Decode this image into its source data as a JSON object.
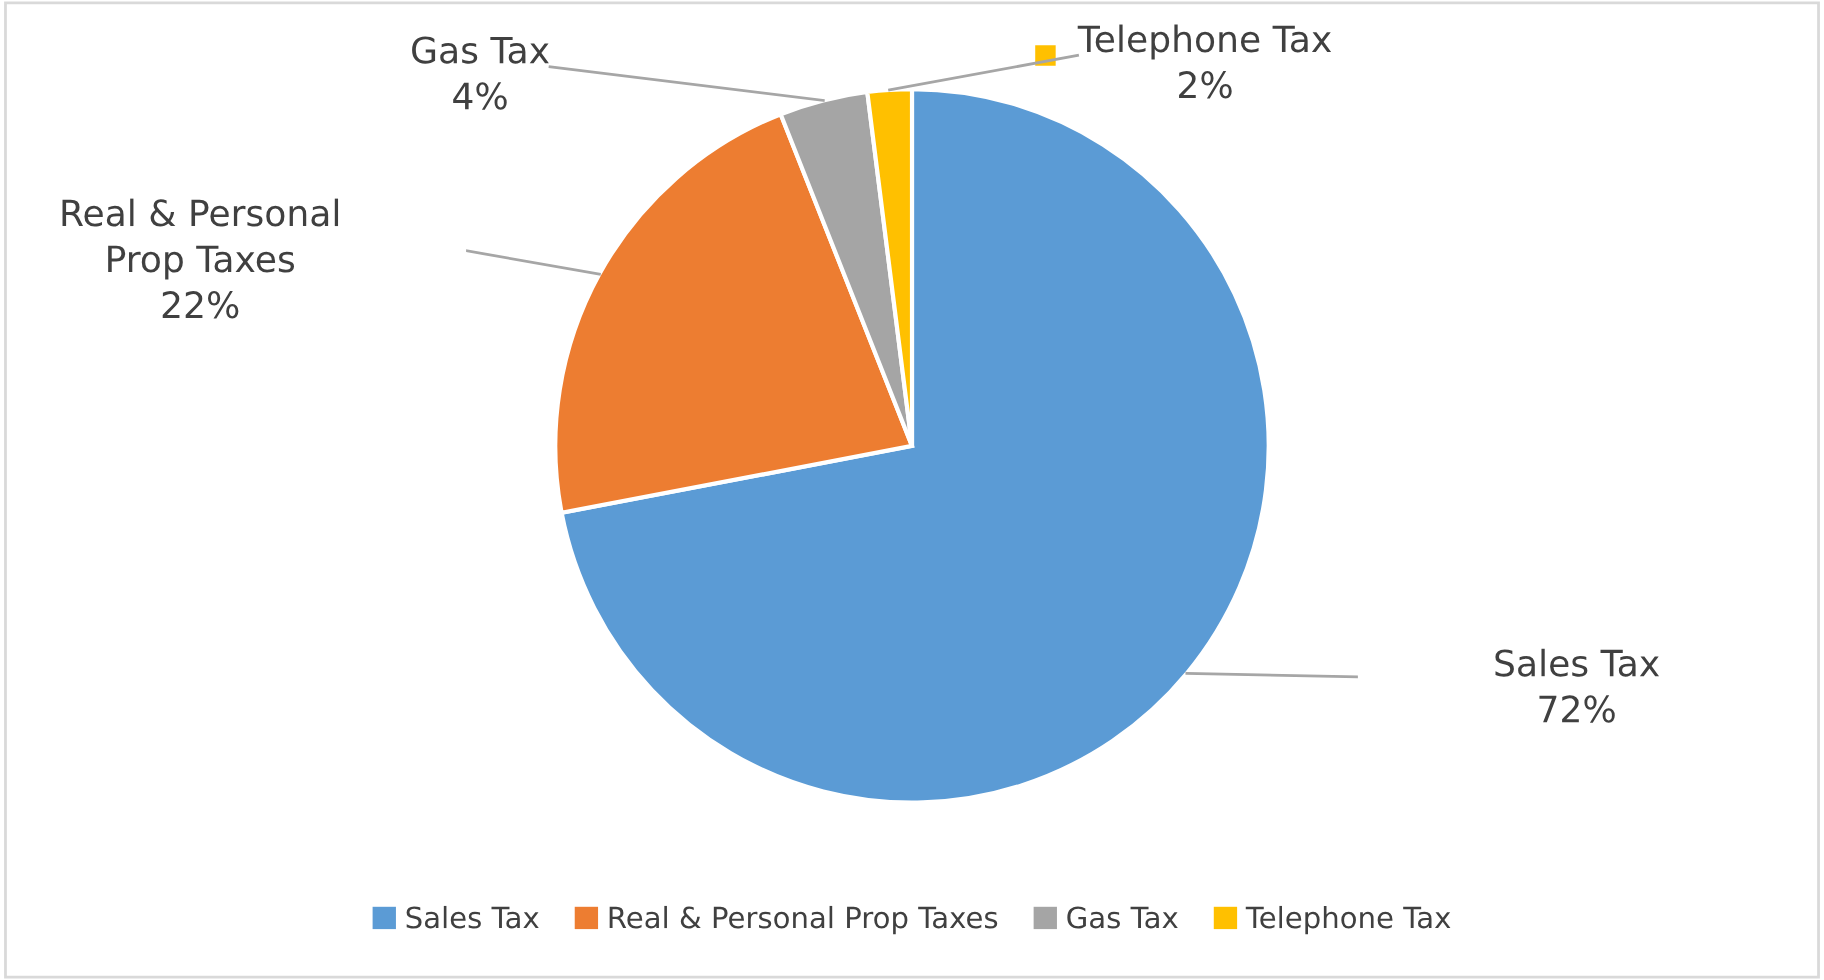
{
  "chart_data": {
    "type": "pie",
    "categories": [
      "Sales Tax",
      "Real & Personal Prop Taxes",
      "Gas Tax",
      "Telephone Tax"
    ],
    "values": [
      72,
      22,
      4,
      2
    ],
    "colors": [
      "#5b9bd5",
      "#ed7d31",
      "#a5a5a5",
      "#ffc000"
    ],
    "value_labels": [
      "72%",
      "22%",
      "4%",
      "2%"
    ],
    "legend": "bottom"
  }
}
